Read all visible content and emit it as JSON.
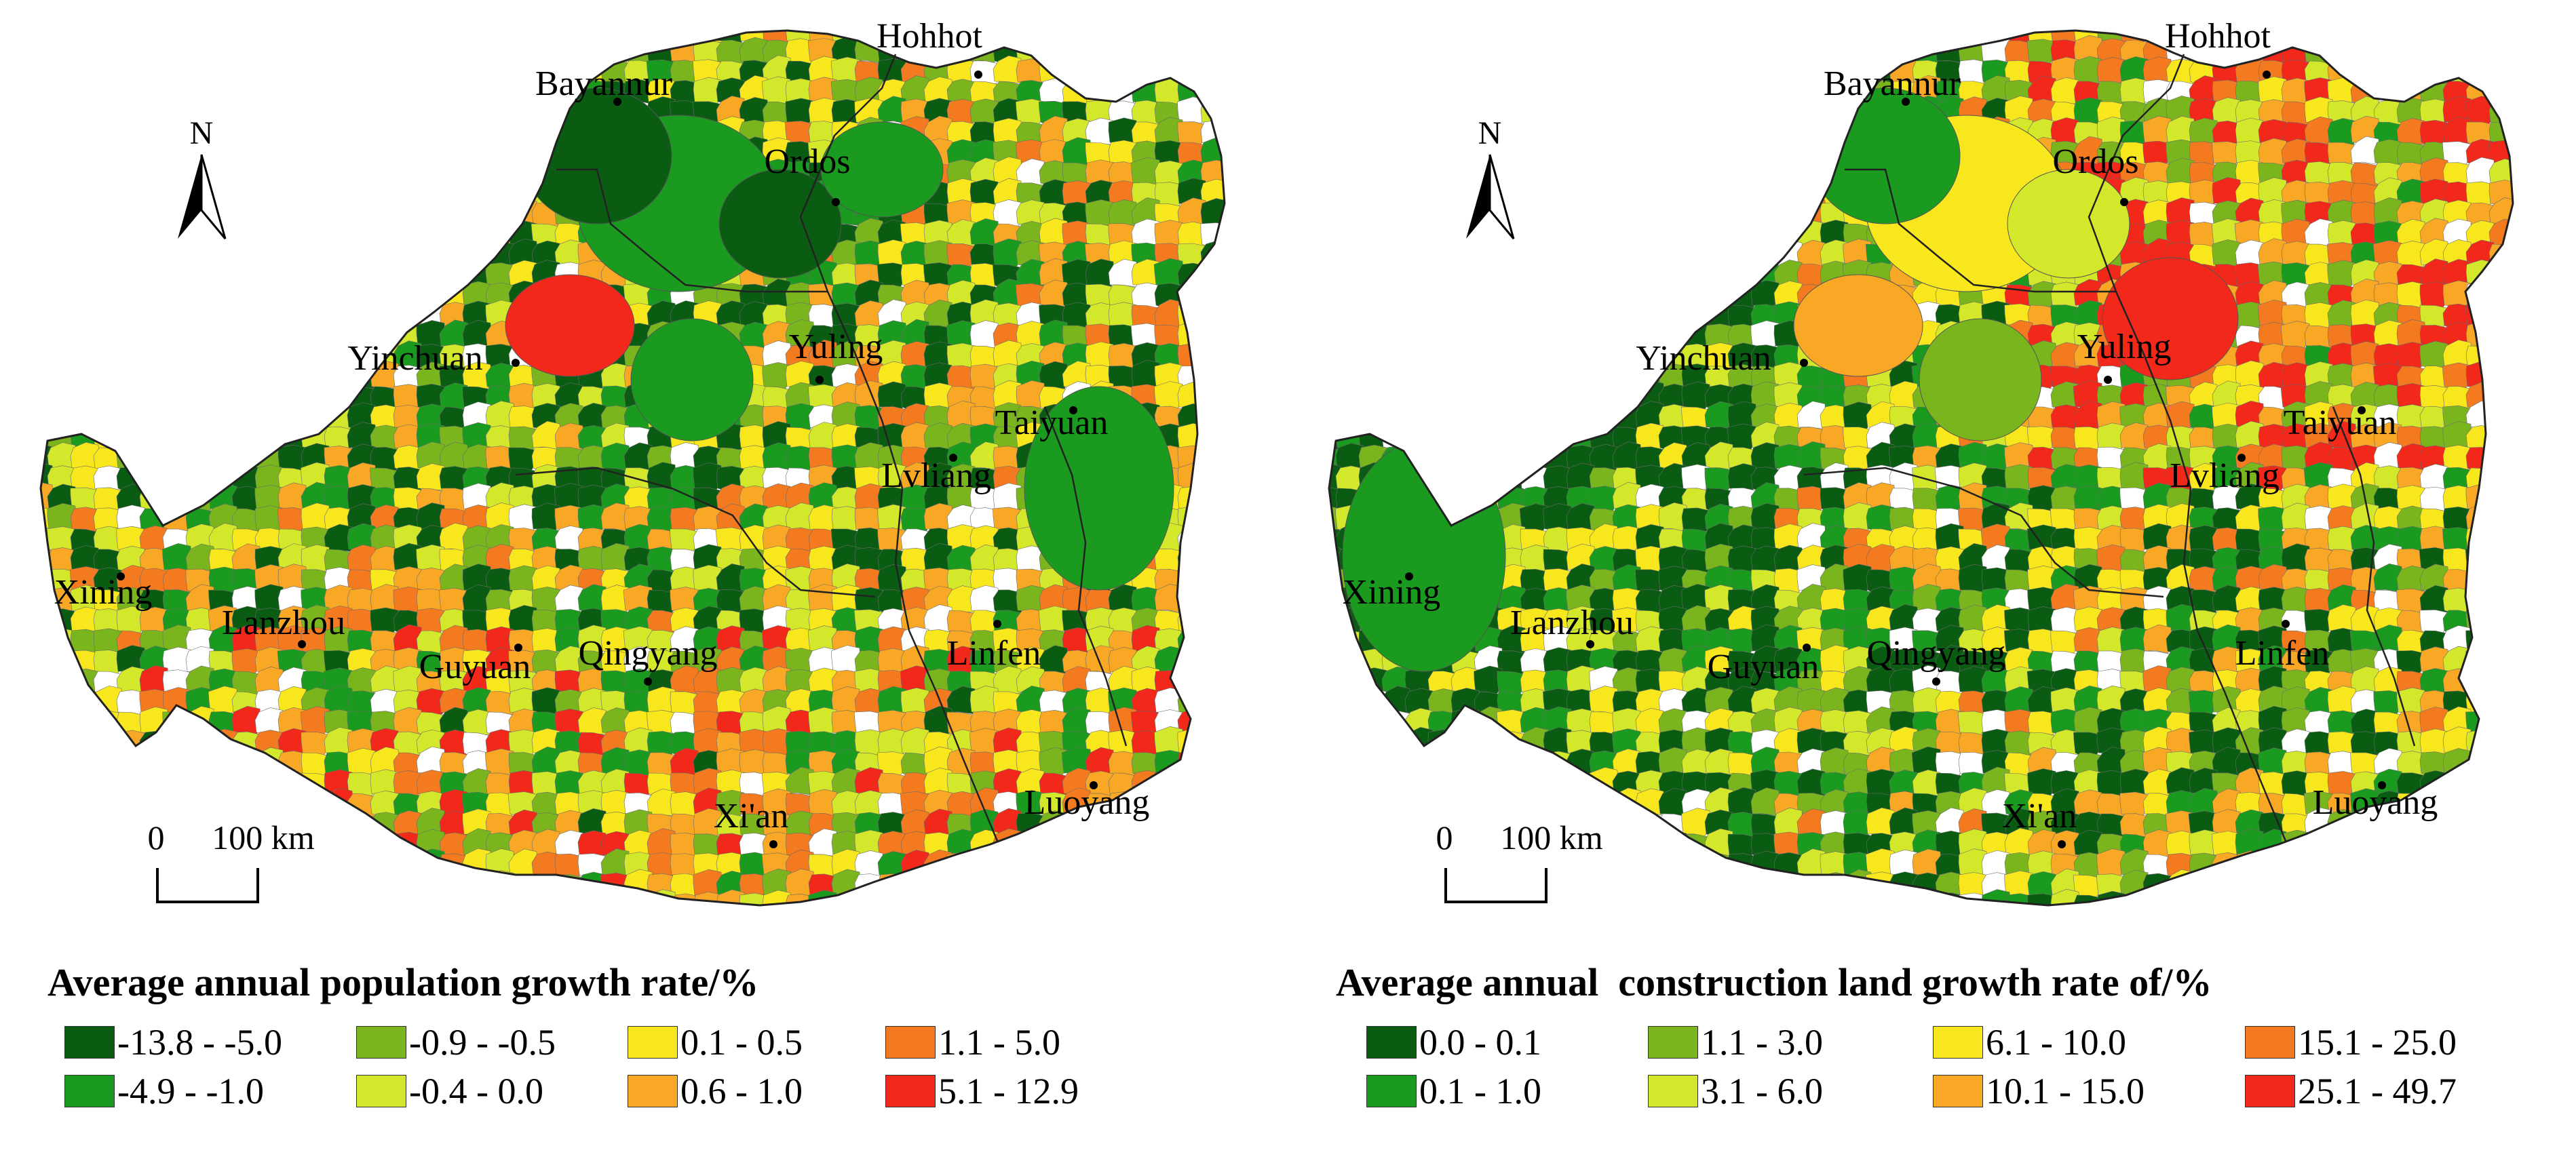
{
  "maps": [
    {
      "id": "population",
      "legend_title": "Average annual population growth rate/%",
      "classes": [
        {
          "label": "-13.8 - -5.0",
          "color": "#0a5c12"
        },
        {
          "label": "-4.9 - -1.0",
          "color": "#1a9a1e"
        },
        {
          "label": "-0.9 - -0.5",
          "color": "#7ab51d"
        },
        {
          "label": "-0.4 - 0.0",
          "color": "#d3e82a"
        },
        {
          "label": "0.1 - 0.5",
          "color": "#f8e71c"
        },
        {
          "label": "0.6 - 1.0",
          "color": "#f9a825"
        },
        {
          "label": "1.1 - 5.0",
          "color": "#f47a20"
        },
        {
          "label": "5.1 - 12.9",
          "color": "#f2281b"
        }
      ],
      "cities": [
        "Hohhot",
        "Bayannur",
        "Ordos",
        "Yinchuan",
        "Yuling",
        "Taiyuan",
        "Lvliang",
        "Xining",
        "Lanzhou",
        "Guyuan",
        "Qingyang",
        "Linfen",
        "Xi'an",
        "Luoyang"
      ],
      "north_label": "N",
      "scale_labels": [
        "0",
        "100 km"
      ]
    },
    {
      "id": "construction",
      "legend_title": "Average annual  construction land growth rate of/%",
      "classes": [
        {
          "label": "0.0 - 0.1",
          "color": "#0a5c12"
        },
        {
          "label": "0.1 - 1.0",
          "color": "#1a9a1e"
        },
        {
          "label": "1.1 - 3.0",
          "color": "#7ab51d"
        },
        {
          "label": "3.1 - 6.0",
          "color": "#d3e82a"
        },
        {
          "label": "6.1 - 10.0",
          "color": "#f8e71c"
        },
        {
          "label": "10.1 - 15.0",
          "color": "#f9a825"
        },
        {
          "label": "15.1 - 25.0",
          "color": "#f47a20"
        },
        {
          "label": "25.1 - 49.7",
          "color": "#f2281b"
        }
      ],
      "cities": [
        "Hohhot",
        "Bayannur",
        "Ordos",
        "Yinchuan",
        "Yuling",
        "Taiyuan",
        "Lvliang",
        "Xining",
        "Lanzhou",
        "Guyuan",
        "Qingyang",
        "Linfen",
        "Xi'an",
        "Luoyang"
      ],
      "north_label": "N",
      "scale_labels": [
        "0",
        "100 km"
      ]
    }
  ]
}
